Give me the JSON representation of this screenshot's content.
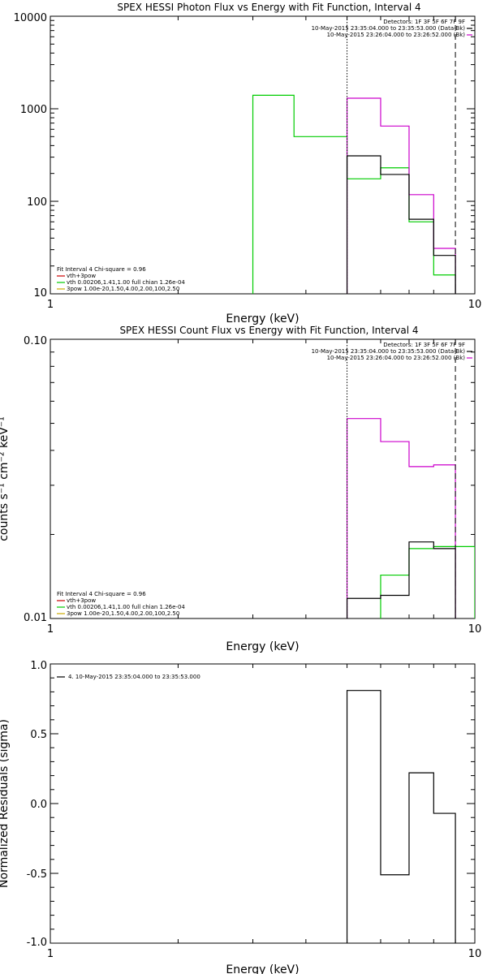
{
  "chart_data": [
    {
      "type": "line",
      "title": "SPEX HESSI Photon Flux vs Energy with Fit Function, Interval 4",
      "xlabel": "Energy (keV)",
      "ylabel": "",
      "xscale": "log",
      "yscale": "log",
      "xlim": [
        1,
        10
      ],
      "ylim": [
        10,
        10000
      ],
      "x_ticks": [
        "1",
        "10"
      ],
      "y_ticks": [
        "10",
        "100",
        "1000",
        "10000"
      ],
      "series": [
        {
          "name": "",
          "color": "#00cc00",
          "edges": [
            3.0,
            3.75,
            5.0,
            6.0,
            7.0,
            8.0,
            9.0
          ],
          "values": [
            1400,
            500,
            175,
            230,
            60,
            16
          ]
        },
        {
          "name": "",
          "color": "#cc00cc",
          "edges": [
            5.0,
            6.0,
            7.0,
            8.0,
            9.0
          ],
          "values": [
            1300,
            650,
            118,
            31
          ]
        },
        {
          "name": "",
          "color": "#000000",
          "edges": [
            5.0,
            6.0,
            7.0,
            8.0,
            9.0
          ],
          "values": [
            310,
            195,
            64,
            26
          ]
        }
      ],
      "vlines": [
        {
          "x": 5.0,
          "style": "dotted"
        },
        {
          "x": 9.0,
          "style": "dashed"
        }
      ],
      "legend_tr": [
        {
          "text": "Detectors: 1F 3F 5F 6F 7F 9F",
          "line": null
        },
        {
          "text": "10-May-2015 23:35:04.000 to 23:35:53.000 (Data-Bk)",
          "line": "#000000"
        },
        {
          "text": "10-May-2015 23:26:04.000 to 23:26:52.000 (Bk)",
          "line": "#cc00cc"
        }
      ],
      "legend_bl": [
        {
          "text": "Fit Interval  4    Chi-square = 0.96",
          "line": null
        },
        {
          "text": "vth+3pow",
          "line": "#cc0000"
        },
        {
          "text": "vth 0.00206,1.41,1.00  full chian 1.26e-04",
          "line": "#00cc00"
        },
        {
          "text": "3pow 1.00e-20,1.50,4.00,2.00,100,2.50",
          "line": "#ccaa00"
        }
      ]
    },
    {
      "type": "line",
      "title": "SPEX HESSI Count Flux vs Energy with Fit Function, Interval 4",
      "xlabel": "Energy (keV)",
      "ylabel": "counts s⁻¹ cm⁻² keV⁻¹",
      "xscale": "log",
      "yscale": "log",
      "xlim": [
        1,
        10
      ],
      "ylim": [
        0.01,
        0.1
      ],
      "x_ticks": [
        "1",
        "10"
      ],
      "y_ticks": [
        "0.01",
        "0.10"
      ],
      "series": [
        {
          "name": "",
          "color": "#cc00cc",
          "edges": [
            5.0,
            6.0,
            7.0,
            8.0,
            9.0
          ],
          "values": [
            0.052,
            0.043,
            0.035,
            0.0355
          ]
        },
        {
          "name": "",
          "color": "#00cc00",
          "edges": [
            5.0,
            6.0,
            7.0,
            8.0,
            9.0,
            10.0
          ],
          "values": [
            null,
            0.0143,
            0.0178,
            0.0181,
            0.0181
          ]
        },
        {
          "name": "",
          "color": "#000000",
          "edges": [
            5.0,
            6.0,
            7.0,
            8.0,
            9.0
          ],
          "values": [
            0.0118,
            0.0121,
            0.0188,
            0.0178
          ]
        }
      ],
      "vlines": [
        {
          "x": 5.0,
          "style": "dotted"
        },
        {
          "x": 9.0,
          "style": "dashed"
        }
      ],
      "legend_tr": [
        {
          "text": "Detectors: 1F 3F 5F 6F 7F 9F",
          "line": null
        },
        {
          "text": "10-May-2015 23:35:04.000 to 23:35:53.000 (Data-Bk)",
          "line": "#000000"
        },
        {
          "text": "10-May-2015 23:26:04.000 to 23:26:52.000 (Bk)",
          "line": "#cc00cc"
        }
      ],
      "legend_bl": [
        {
          "text": "Fit Interval  4    Chi-square = 0.96",
          "line": null
        },
        {
          "text": "vth+3pow",
          "line": "#cc0000"
        },
        {
          "text": "vth 0.00206,1.41,1.00  full chian 1.26e-04",
          "line": "#00cc00"
        },
        {
          "text": "3pow 1.00e-20,1.50,4.00,2.00,100,2.50",
          "line": "#ccaa00"
        }
      ]
    },
    {
      "type": "line",
      "title": "",
      "xlabel": "Energy (keV)",
      "ylabel": "Normalized Residuals (sigma)",
      "xscale": "log",
      "yscale": "linear",
      "xlim": [
        1,
        10
      ],
      "ylim": [
        -1.0,
        1.0
      ],
      "x_ticks": [
        "1",
        "10"
      ],
      "y_ticks": [
        "-1.0",
        "-0.5",
        "0.0",
        "0.5",
        "1.0"
      ],
      "series": [
        {
          "name": "",
          "color": "#000000",
          "edges": [
            5.0,
            6.0,
            7.0,
            8.0,
            9.0
          ],
          "values": [
            0.81,
            -0.51,
            0.22,
            -0.07
          ],
          "drop_to_min": true
        }
      ],
      "vlines": [],
      "legend_tr": [],
      "legend_bl": [],
      "legend_tl": [
        {
          "text": "4. 10-May-2015 23:35:04.000 to 23:35:53.000",
          "line": "#000000"
        }
      ]
    }
  ]
}
